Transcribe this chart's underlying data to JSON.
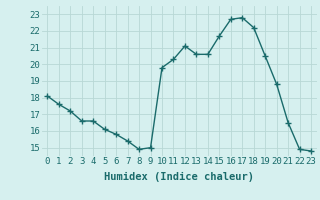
{
  "x": [
    0,
    1,
    2,
    3,
    4,
    5,
    6,
    7,
    8,
    9,
    10,
    11,
    12,
    13,
    14,
    15,
    16,
    17,
    18,
    19,
    20,
    21,
    22,
    23
  ],
  "y": [
    18.1,
    17.6,
    17.2,
    16.6,
    16.6,
    16.1,
    15.8,
    15.4,
    14.9,
    15.0,
    19.8,
    20.3,
    21.1,
    20.6,
    20.6,
    21.7,
    22.7,
    22.8,
    22.2,
    20.5,
    18.8,
    16.5,
    14.9,
    14.8
  ],
  "line_color": "#1a6b6b",
  "marker": "+",
  "marker_size": 4,
  "marker_lw": 1.0,
  "line_width": 1.0,
  "bg_color": "#d6f0ef",
  "grid_color": "#b8d8d5",
  "xlabel": "Humidex (Indice chaleur)",
  "ylim": [
    14.5,
    23.5
  ],
  "xlim": [
    -0.5,
    23.5
  ],
  "yticks": [
    15,
    16,
    17,
    18,
    19,
    20,
    21,
    22,
    23
  ],
  "xticks": [
    0,
    1,
    2,
    3,
    4,
    5,
    6,
    7,
    8,
    9,
    10,
    11,
    12,
    13,
    14,
    15,
    16,
    17,
    18,
    19,
    20,
    21,
    22,
    23
  ],
  "tick_fontsize": 6.5,
  "xlabel_fontsize": 7.5
}
